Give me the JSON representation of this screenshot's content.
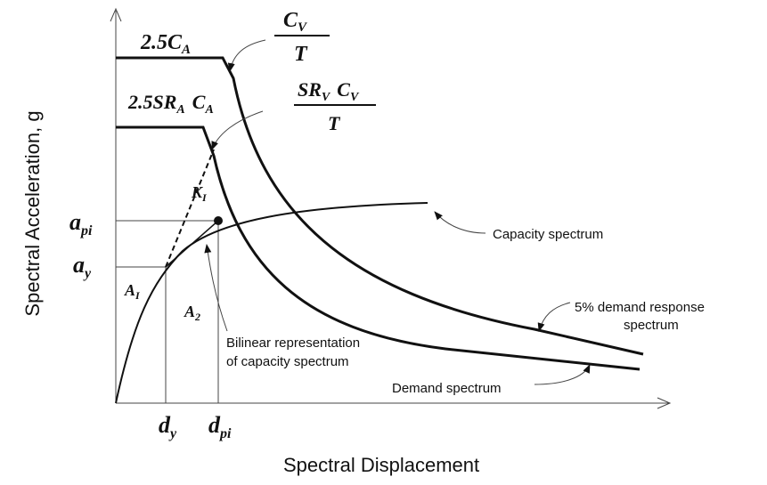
{
  "axes": {
    "y_label": "Spectral Acceleration, g",
    "x_label": "Spectral Displacement"
  },
  "labels": {
    "elastic_plateau": {
      "text": "2.5C",
      "sub": "A"
    },
    "elastic_descent": {
      "num": "C",
      "num_sub": "V",
      "den": "T"
    },
    "reduced_plateau": {
      "text1": "2.5SR",
      "sub1": "A",
      "text2": "C",
      "sub2": "A"
    },
    "reduced_descent": {
      "num1": "SR",
      "num_sub1": "V",
      "num2": "C",
      "num_sub2": "V",
      "den": "T"
    },
    "initial_stiffness": {
      "text": "K",
      "sub": "I"
    },
    "api": {
      "text": "a",
      "sub": "pi"
    },
    "ay": {
      "text": "a",
      "sub": "y"
    },
    "area1": {
      "text": "A",
      "sub": "I"
    },
    "area2": {
      "text": "A",
      "sub": "2"
    },
    "dy": {
      "text": "d",
      "sub": "y"
    },
    "dpi": {
      "text": "d",
      "sub": "pi"
    }
  },
  "annotations": {
    "capacity": "Capacity spectrum",
    "demand_5": [
      "5% demand response",
      "spectrum"
    ],
    "bilinear": [
      "Bilinear representation",
      "of capacity spectrum"
    ],
    "demand": "Demand spectrum"
  }
}
